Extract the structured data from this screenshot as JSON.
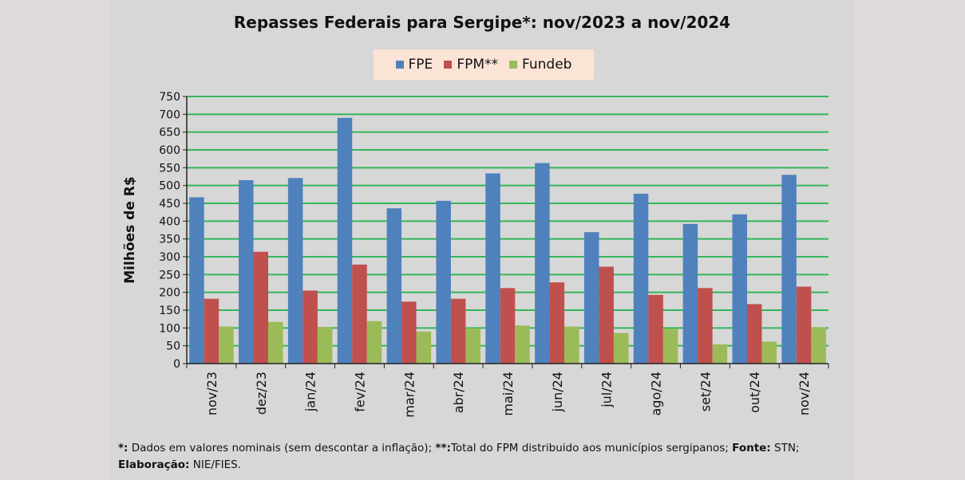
{
  "chart_data": {
    "type": "bar",
    "title": "Repasses Federais para Sergipe*: nov/2023 a nov/2024",
    "ylabel": "Milhões de R$",
    "xlabel": "",
    "ylim": [
      0,
      750
    ],
    "yticks": [
      0,
      50,
      100,
      150,
      200,
      250,
      300,
      350,
      400,
      450,
      500,
      550,
      600,
      650,
      700,
      750
    ],
    "grid": true,
    "legend_position": "top-center",
    "categories": [
      "nov/23",
      "dez/23",
      "jan/24",
      "fev/24",
      "mar/24",
      "abr/24",
      "mai/24",
      "jun/24",
      "jul/24",
      "ago/24",
      "set/24",
      "out/24",
      "nov/24"
    ],
    "series": [
      {
        "name": "FPE",
        "color": "#4f81bd",
        "values": [
          467,
          515,
          521,
          690,
          436,
          457,
          534,
          563,
          369,
          477,
          392,
          419,
          530
        ]
      },
      {
        "name": "FPM**",
        "color": "#c0504d",
        "values": [
          182,
          314,
          205,
          278,
          174,
          182,
          212,
          228,
          272,
          193,
          212,
          167,
          216
        ]
      },
      {
        "name": "Fundeb",
        "color": "#9bbb59",
        "values": [
          104,
          117,
          103,
          119,
          90,
          99,
          107,
          104,
          86,
          98,
          54,
          62,
          102
        ]
      }
    ]
  },
  "footnote": {
    "part1_label": "*:",
    "part1_text": " Dados em valores nominais (sem descontar a inflação); ",
    "part2_label": "**:",
    "part2_text": "Total  do FPM distribuido aos municípios sergipanos; ",
    "source_label": "Fonte:",
    "source_text": " STN;",
    "credit_label": "Elaboração:",
    "credit_text": " NIE/FIES."
  },
  "colors": {
    "gridline": "#33b65a",
    "axis": "#222222",
    "panel_background": "#d7d7d7",
    "legend_background": "#fbe4d5"
  }
}
